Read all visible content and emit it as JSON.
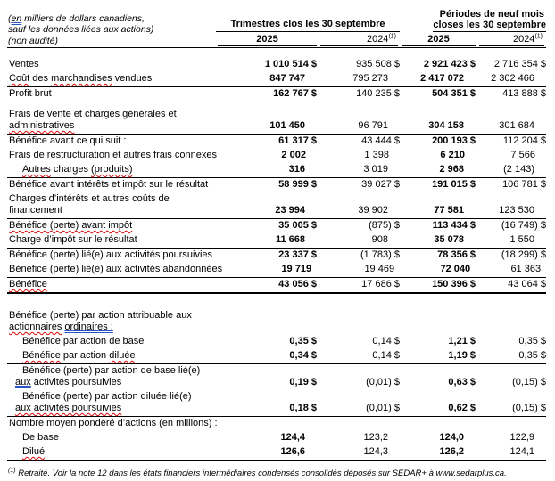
{
  "header": {
    "note_lines": [
      [
        {
          "t": "("
        },
        {
          "t": "en",
          "m": "blue"
        },
        {
          "t": " milliers de dollars canadiens,"
        }
      ],
      [
        {
          "t": "sauf les données liées aux actions)"
        }
      ],
      [
        {
          "t": "(non audité)"
        }
      ]
    ],
    "q_title": "Trimestres clos les 30 septembre",
    "p_title1": "Périodes de neuf mois",
    "p_title2": "closes les 30 septembre",
    "years": [
      "2025",
      "2024",
      "2025",
      "2024"
    ],
    "marker": "(1)"
  },
  "table": {
    "rows": [
      {
        "gap": 11,
        "label": "Ventes",
        "values": [
          "1 010 514 $",
          "935 508 $",
          "2 921 423 $",
          "2 716 354 $"
        ]
      },
      {
        "label": [
          {
            "t": "Coût",
            "m": "red"
          },
          {
            "t": " des "
          },
          {
            "t": "marchandises",
            "m": "red"
          },
          {
            "t": " vendues"
          }
        ],
        "values": [
          "847 747",
          "795 273",
          "2 417 072",
          "2 302 466"
        ],
        "rule": "thin"
      },
      {
        "label": "Profit brut",
        "values": [
          "162 767 $",
          "140 235 $",
          "504 351 $",
          "413 888 $"
        ]
      },
      {
        "gap": 7,
        "label": "Frais de vente et charges générales et",
        "label2": [
          {
            "t": "administratives",
            "m": "red"
          }
        ],
        "values": [
          "101 450",
          "96 791",
          "304 158",
          "301 684"
        ],
        "rule": "thin"
      },
      {
        "label": "Bénéfice avant ce qui suit :",
        "values": [
          "61 317 $",
          "43 444 $",
          "200 193 $",
          "112 204 $"
        ]
      },
      {
        "label": "Frais de restructuration et autres frais connexes",
        "values": [
          "2 002",
          "1 398",
          "6 210",
          "7 566"
        ]
      },
      {
        "indent": true,
        "label": [
          {
            "t": "Autres",
            "m": "red"
          },
          {
            "t": " charges "
          },
          {
            "t": "(produits)",
            "m": "red"
          }
        ],
        "values": [
          "316",
          "3 019",
          "2 968",
          "(2 143)"
        ],
        "rule": "thin"
      },
      {
        "label": "Bénéfice avant intérêts et impôt sur le résultat",
        "values": [
          "58 999 $",
          "39 027 $",
          "191 015 $",
          "106 781 $"
        ]
      },
      {
        "label": "Charges d’intérêts et autres coûts de",
        "label2": "financement",
        "values": [
          "23 994",
          "39 902",
          "77 581",
          "123 530"
        ],
        "rule": "thin"
      },
      {
        "label": [
          {
            "t": "Bénéfice (perte) avant impôt",
            "m": "red"
          }
        ],
        "values": [
          "35 005 $",
          "(875) $",
          "113 434 $",
          "(16 749) $"
        ]
      },
      {
        "label": "Charge d’impôt sur le résultat",
        "values": [
          "11 668",
          "908",
          "35 078",
          "1 550"
        ],
        "rule": "thin"
      },
      {
        "label": "Bénéfice (perte) lié(e) aux activités poursuivies",
        "values": [
          "23 337 $",
          "(1 783) $",
          "78 356 $",
          "(18 299) $"
        ]
      },
      {
        "label": "Bénéfice (perte) lié(e) aux activités abandonnées",
        "values": [
          "19 719",
          "19 469",
          "72 040",
          "61 363"
        ],
        "rule": "thin"
      },
      {
        "label": [
          {
            "t": "Bénéfice",
            "m": "red"
          }
        ],
        "values": [
          "43 056 $",
          "17 686 $",
          "150 396 $",
          "43 064 $"
        ],
        "rule": "thick"
      },
      {
        "gap": 17,
        "label": "Bénéfice (perte) par action attribuable aux",
        "label2": [
          {
            "t": "actionnaires",
            "m": "red"
          },
          {
            "t": " "
          },
          {
            "t": "ordinaires :",
            "m": "blue"
          }
        ],
        "values": null
      },
      {
        "indent": true,
        "label": "Bénéfice par action de base",
        "values": [
          "0,35 $",
          "0,14 $",
          "1,21 $",
          "0,35 $"
        ]
      },
      {
        "indent": true,
        "label": [
          {
            "t": "Bénéfice",
            "m": "red"
          },
          {
            "t": " par action "
          },
          {
            "t": "diluée",
            "m": "red"
          }
        ],
        "values": [
          "0,34 $",
          "0,14 $",
          "1,19 $",
          "0,35 $"
        ],
        "rule": "thin"
      },
      {
        "indent": true,
        "label": "Bénéfice (perte) par action de base lié(e)",
        "label2": [
          {
            "t": "aux",
            "m": "blue"
          },
          {
            "t": " activités poursuivies"
          }
        ],
        "values": [
          "0,19 $",
          "(0,01) $",
          "0,63 $",
          "(0,15) $"
        ]
      },
      {
        "indent": true,
        "label": "Bénéfice (perte) par action diluée lié(e)",
        "label2": [
          {
            "t": "aux activités poursuivies",
            "m": "red"
          }
        ],
        "values": [
          "0,18 $",
          "(0,01) $",
          "0,62 $",
          "(0,15) $"
        ],
        "rule": "thin"
      },
      {
        "label": "Nombre moyen pondéré d’actions (en millions) :",
        "values": null
      },
      {
        "indent": true,
        "label": "De base",
        "values": [
          "124,4",
          "123,2",
          "124,0",
          "122,9"
        ]
      },
      {
        "indent": true,
        "label": [
          {
            "t": "Dilué",
            "m": "red"
          }
        ],
        "values": [
          "126,6",
          "124,3",
          "126,2",
          "124,1"
        ],
        "rule": "thick"
      }
    ]
  },
  "footnote": "Retraité. Voir la note 12 dans les états financiers intermédiaires condensés consolidés déposés sur SEDAR+ à www.sedarplus.ca."
}
